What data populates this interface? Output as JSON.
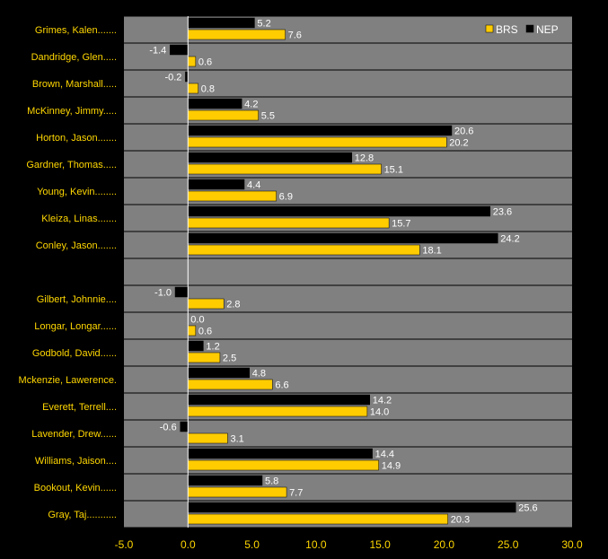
{
  "colors": {
    "background": "#000000",
    "plot_area": "#808080",
    "label_text": "#FFD700",
    "axis_text": "#FFD700",
    "value_text": "#FFFFFF",
    "series_brs": "#FFCC00",
    "series_nep": "#000000",
    "grid": "#000000",
    "zero_line": "#FFFFFF"
  },
  "chart_data": {
    "type": "bar",
    "orientation": "horizontal",
    "categories": [
      "Grimes, Kalen.......",
      "Dandridge, Glen.....",
      "Brown, Marshall.....",
      "McKinney, Jimmy.....",
      "Horton, Jason.......",
      "Gardner, Thomas.....",
      "Young, Kevin........",
      "Kleiza, Linas.......",
      "Conley, Jason.......",
      "",
      "Gilbert, Johnnie....",
      "Longar, Longar......",
      "Godbold, David......",
      "Mckenzie, Lawerence.",
      "Everett, Terrell....",
      "Lavender, Drew......",
      "Williams, Jaison....",
      "Bookout, Kevin......",
      "Gray, Taj..........."
    ],
    "series": [
      {
        "name": "NEP",
        "values": [
          5.2,
          -1.4,
          -0.2,
          4.2,
          20.6,
          12.8,
          4.4,
          23.6,
          24.2,
          null,
          -1.0,
          0.0,
          1.2,
          4.8,
          14.2,
          -0.6,
          14.4,
          5.8,
          25.6
        ],
        "labels": [
          "5.2",
          "-1.4",
          "-0.2",
          "4.2",
          "20.6",
          "12.8",
          "4.4",
          "23.6",
          "24.2",
          "",
          "-1.0",
          "0.0",
          "1.2",
          "4.8",
          "14.2",
          "-0.6",
          "14.4",
          "5.8",
          "25.6"
        ]
      },
      {
        "name": "BRS",
        "values": [
          7.6,
          0.6,
          0.8,
          5.5,
          20.2,
          15.1,
          6.9,
          15.7,
          18.1,
          null,
          2.8,
          0.6,
          2.5,
          6.6,
          14.0,
          3.1,
          14.9,
          7.7,
          20.3
        ],
        "labels": [
          "7.6",
          "0.6",
          "0.8",
          "5.5",
          "20.2",
          "15.1",
          "6.9",
          "15.7",
          "18.1",
          "",
          "2.8",
          "0.6",
          "2.5",
          "6.6",
          "14.0",
          "3.1",
          "14.9",
          "7.7",
          "20.3"
        ]
      }
    ],
    "legend": [
      "BRS",
      "NEP"
    ],
    "legend_position": "top-right",
    "xlim": [
      -5.0,
      30.0
    ],
    "xticks": [
      -5.0,
      0.0,
      5.0,
      10.0,
      15.0,
      20.0,
      25.0,
      30.0
    ],
    "xtick_labels": [
      "-5.0",
      "0.0",
      "5.0",
      "10.0",
      "15.0",
      "20.0",
      "25.0",
      "30.0"
    ],
    "grid": true,
    "title": "",
    "xlabel": "",
    "ylabel": ""
  }
}
